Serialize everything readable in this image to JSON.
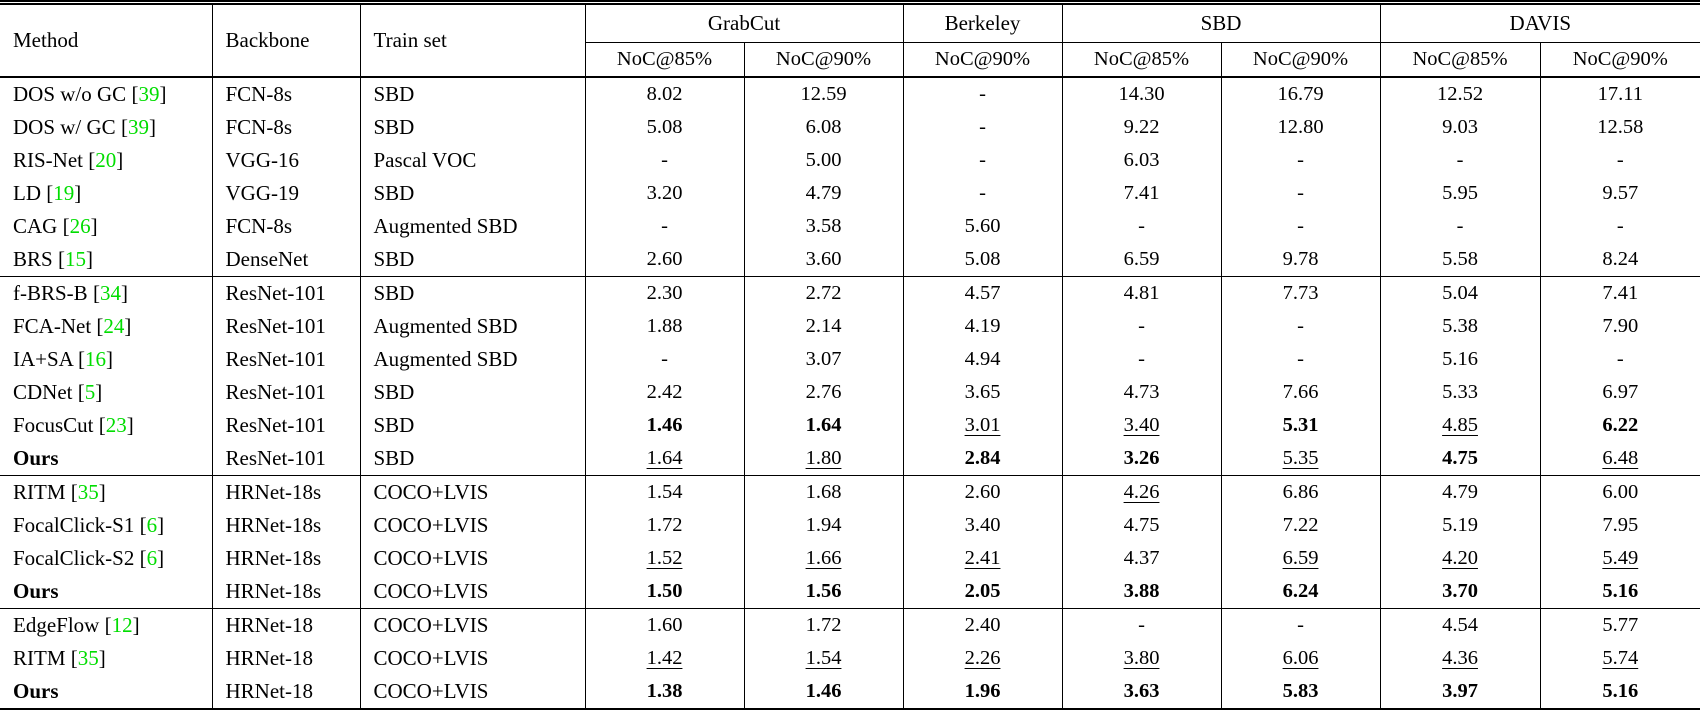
{
  "citation_color": "#00dd00",
  "table": {
    "header": {
      "method": "Method",
      "backbone": "Backbone",
      "train_set": "Train set",
      "groups": [
        {
          "label": "GrabCut",
          "cols": [
            "NoC@85%",
            "NoC@90%"
          ]
        },
        {
          "label": "Berkeley",
          "cols": [
            "NoC@90%"
          ]
        },
        {
          "label": "SBD",
          "cols": [
            "NoC@85%",
            "NoC@90%"
          ]
        },
        {
          "label": "DAVIS",
          "cols": [
            "NoC@85%",
            "NoC@90%"
          ]
        }
      ]
    },
    "groups": [
      {
        "rows": [
          {
            "method": "DOS w/o GC",
            "cite": "39",
            "bold": false,
            "backbone": "FCN-8s",
            "train": "SBD",
            "vals": [
              [
                "8.02",
                ""
              ],
              [
                "12.59",
                ""
              ],
              [
                "-",
                ""
              ],
              [
                "14.30",
                ""
              ],
              [
                "16.79",
                ""
              ],
              [
                "12.52",
                ""
              ],
              [
                "17.11",
                ""
              ]
            ]
          },
          {
            "method": "DOS w/ GC",
            "cite": "39",
            "bold": false,
            "backbone": "FCN-8s",
            "train": "SBD",
            "vals": [
              [
                "5.08",
                ""
              ],
              [
                "6.08",
                ""
              ],
              [
                "-",
                ""
              ],
              [
                "9.22",
                ""
              ],
              [
                "12.80",
                ""
              ],
              [
                "9.03",
                ""
              ],
              [
                "12.58",
                ""
              ]
            ]
          },
          {
            "method": "RIS-Net",
            "cite": "20",
            "bold": false,
            "backbone": "VGG-16",
            "train": "Pascal VOC",
            "vals": [
              [
                "-",
                ""
              ],
              [
                "5.00",
                ""
              ],
              [
                "-",
                ""
              ],
              [
                "6.03",
                ""
              ],
              [
                "-",
                ""
              ],
              [
                "-",
                ""
              ],
              [
                "-",
                ""
              ]
            ]
          },
          {
            "method": "LD",
            "cite": "19",
            "bold": false,
            "backbone": "VGG-19",
            "train": "SBD",
            "vals": [
              [
                "3.20",
                ""
              ],
              [
                "4.79",
                ""
              ],
              [
                "-",
                ""
              ],
              [
                "7.41",
                ""
              ],
              [
                "-",
                ""
              ],
              [
                "5.95",
                ""
              ],
              [
                "9.57",
                ""
              ]
            ]
          },
          {
            "method": "CAG",
            "cite": "26",
            "bold": false,
            "backbone": "FCN-8s",
            "train": "Augmented SBD",
            "vals": [
              [
                "-",
                ""
              ],
              [
                "3.58",
                ""
              ],
              [
                "5.60",
                ""
              ],
              [
                "-",
                ""
              ],
              [
                "-",
                ""
              ],
              [
                "-",
                ""
              ],
              [
                "-",
                ""
              ]
            ]
          },
          {
            "method": "BRS",
            "cite": "15",
            "bold": false,
            "backbone": "DenseNet",
            "train": "SBD",
            "vals": [
              [
                "2.60",
                ""
              ],
              [
                "3.60",
                ""
              ],
              [
                "5.08",
                ""
              ],
              [
                "6.59",
                ""
              ],
              [
                "9.78",
                ""
              ],
              [
                "5.58",
                ""
              ],
              [
                "8.24",
                ""
              ]
            ]
          }
        ]
      },
      {
        "rows": [
          {
            "method": "f-BRS-B",
            "cite": "34",
            "bold": false,
            "backbone": "ResNet-101",
            "train": "SBD",
            "vals": [
              [
                "2.30",
                ""
              ],
              [
                "2.72",
                ""
              ],
              [
                "4.57",
                ""
              ],
              [
                "4.81",
                ""
              ],
              [
                "7.73",
                ""
              ],
              [
                "5.04",
                ""
              ],
              [
                "7.41",
                ""
              ]
            ]
          },
          {
            "method": "FCA-Net",
            "cite": "24",
            "bold": false,
            "backbone": "ResNet-101",
            "train": "Augmented SBD",
            "vals": [
              [
                "1.88",
                ""
              ],
              [
                "2.14",
                ""
              ],
              [
                "4.19",
                ""
              ],
              [
                "-",
                ""
              ],
              [
                "-",
                ""
              ],
              [
                "5.38",
                ""
              ],
              [
                "7.90",
                ""
              ]
            ]
          },
          {
            "method": "IA+SA",
            "cite": "16",
            "bold": false,
            "backbone": "ResNet-101",
            "train": "Augmented SBD",
            "vals": [
              [
                "-",
                ""
              ],
              [
                "3.07",
                ""
              ],
              [
                "4.94",
                ""
              ],
              [
                "-",
                ""
              ],
              [
                "-",
                ""
              ],
              [
                "5.16",
                ""
              ],
              [
                "-",
                ""
              ]
            ]
          },
          {
            "method": "CDNet",
            "cite": "5",
            "bold": false,
            "backbone": "ResNet-101",
            "train": "SBD",
            "vals": [
              [
                "2.42",
                ""
              ],
              [
                "2.76",
                ""
              ],
              [
                "3.65",
                ""
              ],
              [
                "4.73",
                ""
              ],
              [
                "7.66",
                ""
              ],
              [
                "5.33",
                ""
              ],
              [
                "6.97",
                ""
              ]
            ]
          },
          {
            "method": "FocusCut",
            "cite": "23",
            "bold": false,
            "backbone": "ResNet-101",
            "train": "SBD",
            "vals": [
              [
                "1.46",
                "b"
              ],
              [
                "1.64",
                "b"
              ],
              [
                "3.01",
                "u"
              ],
              [
                "3.40",
                "u"
              ],
              [
                "5.31",
                "b"
              ],
              [
                "4.85",
                "u"
              ],
              [
                "6.22",
                "b"
              ]
            ]
          },
          {
            "method": "Ours",
            "cite": "",
            "bold": true,
            "backbone": "ResNet-101",
            "train": "SBD",
            "vals": [
              [
                "1.64",
                "u"
              ],
              [
                "1.80",
                "u"
              ],
              [
                "2.84",
                "b"
              ],
              [
                "3.26",
                "b"
              ],
              [
                "5.35",
                "u"
              ],
              [
                "4.75",
                "b"
              ],
              [
                "6.48",
                "u"
              ]
            ]
          }
        ]
      },
      {
        "rows": [
          {
            "method": "RITM",
            "cite": "35",
            "bold": false,
            "backbone": "HRNet-18s",
            "train": "COCO+LVIS",
            "vals": [
              [
                "1.54",
                ""
              ],
              [
                "1.68",
                ""
              ],
              [
                "2.60",
                ""
              ],
              [
                "4.26",
                "u"
              ],
              [
                "6.86",
                ""
              ],
              [
                "4.79",
                ""
              ],
              [
                "6.00",
                ""
              ]
            ]
          },
          {
            "method": "FocalClick-S1",
            "cite": "6",
            "bold": false,
            "backbone": "HRNet-18s",
            "train": "COCO+LVIS",
            "vals": [
              [
                "1.72",
                ""
              ],
              [
                "1.94",
                ""
              ],
              [
                "3.40",
                ""
              ],
              [
                "4.75",
                ""
              ],
              [
                "7.22",
                ""
              ],
              [
                "5.19",
                ""
              ],
              [
                "7.95",
                ""
              ]
            ]
          },
          {
            "method": "FocalClick-S2",
            "cite": "6",
            "bold": false,
            "backbone": "HRNet-18s",
            "train": "COCO+LVIS",
            "vals": [
              [
                "1.52",
                "u"
              ],
              [
                "1.66",
                "u"
              ],
              [
                "2.41",
                "u"
              ],
              [
                "4.37",
                ""
              ],
              [
                "6.59",
                "u"
              ],
              [
                "4.20",
                "u"
              ],
              [
                "5.49",
                "u"
              ]
            ]
          },
          {
            "method": "Ours",
            "cite": "",
            "bold": true,
            "backbone": "HRNet-18s",
            "train": "COCO+LVIS",
            "vals": [
              [
                "1.50",
                "b"
              ],
              [
                "1.56",
                "b"
              ],
              [
                "2.05",
                "b"
              ],
              [
                "3.88",
                "b"
              ],
              [
                "6.24",
                "b"
              ],
              [
                "3.70",
                "b"
              ],
              [
                "5.16",
                "b"
              ]
            ]
          }
        ]
      },
      {
        "rows": [
          {
            "method": "EdgeFlow",
            "cite": "12",
            "bold": false,
            "backbone": "HRNet-18",
            "train": "COCO+LVIS",
            "vals": [
              [
                "1.60",
                ""
              ],
              [
                "1.72",
                ""
              ],
              [
                "2.40",
                ""
              ],
              [
                "-",
                ""
              ],
              [
                "-",
                ""
              ],
              [
                "4.54",
                ""
              ],
              [
                "5.77",
                ""
              ]
            ]
          },
          {
            "method": "RITM",
            "cite": "35",
            "bold": false,
            "backbone": "HRNet-18",
            "train": "COCO+LVIS",
            "vals": [
              [
                "1.42",
                "u"
              ],
              [
                "1.54",
                "u"
              ],
              [
                "2.26",
                "u"
              ],
              [
                "3.80",
                "u"
              ],
              [
                "6.06",
                "u"
              ],
              [
                "4.36",
                "u"
              ],
              [
                "5.74",
                "u"
              ]
            ]
          },
          {
            "method": "Ours",
            "cite": "",
            "bold": true,
            "backbone": "HRNet-18",
            "train": "COCO+LVIS",
            "vals": [
              [
                "1.38",
                "b"
              ],
              [
                "1.46",
                "b"
              ],
              [
                "1.96",
                "b"
              ],
              [
                "3.63",
                "b"
              ],
              [
                "5.83",
                "b"
              ],
              [
                "3.97",
                "b"
              ],
              [
                "5.16",
                "b"
              ]
            ]
          }
        ]
      }
    ]
  }
}
